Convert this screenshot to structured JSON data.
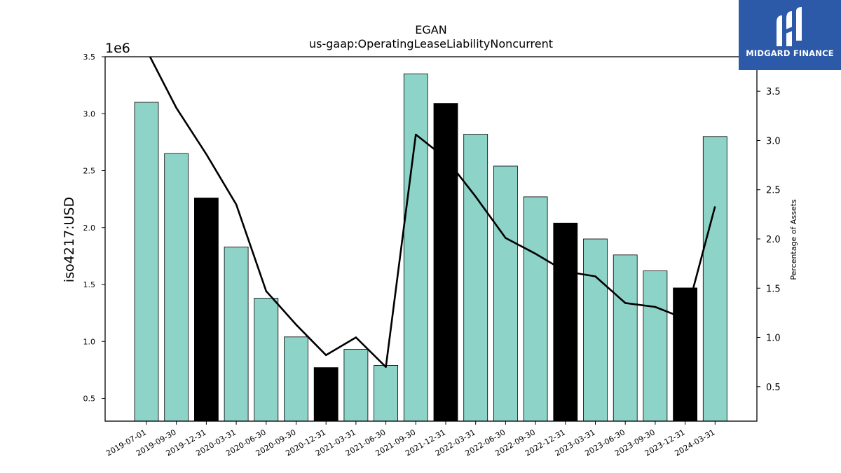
{
  "logo": {
    "text": "MIDGARD FINANCE",
    "bg": "#2c5aa8"
  },
  "chart_data": {
    "type": "bar+line",
    "title": "EGAN",
    "subtitle": "us-gaap:OperatingLeaseLiabilityNoncurrent",
    "ylabel": "iso4217:USD",
    "y_multiplier_label": "1e6",
    "y2label": "Percentage of Assets",
    "ylim": [
      300000,
      3500000
    ],
    "y2lim": [
      0.15,
      3.85
    ],
    "yticks": [
      500000,
      1000000,
      1500000,
      2000000,
      2500000,
      3000000,
      3500000
    ],
    "yticklabels": [
      "0.5",
      "1.0",
      "1.5",
      "2.0",
      "2.5",
      "3.0",
      "3.5"
    ],
    "y2ticks": [
      0.5,
      1.0,
      1.5,
      2.0,
      2.5,
      3.0,
      3.5
    ],
    "y2ticklabels": [
      "0.5",
      "1.0",
      "1.5",
      "2.0",
      "2.5",
      "3.0",
      "3.5"
    ],
    "categories": [
      "2019-07-01",
      "2019-09-30",
      "2019-12-31",
      "2020-03-31",
      "2020-06-30",
      "2020-09-30",
      "2020-12-31",
      "2021-03-31",
      "2021-06-30",
      "2021-09-30",
      "2021-12-31",
      "2022-03-31",
      "2022-06-30",
      "2022-09-30",
      "2022-12-31",
      "2023-03-31",
      "2023-06-30",
      "2023-09-30",
      "2023-12-31",
      "2024-03-31"
    ],
    "series": [
      {
        "kind": "bar",
        "values": [
          3100000,
          2650000,
          2260000,
          1830000,
          1380000,
          1040000,
          770000,
          930000,
          790000,
          3350000,
          3090000,
          2820000,
          2540000,
          2270000,
          2040000,
          1900000,
          1760000,
          1620000,
          1470000,
          2800000
        ],
        "highlight": [
          false,
          false,
          true,
          false,
          false,
          false,
          true,
          false,
          false,
          false,
          true,
          false,
          false,
          false,
          true,
          false,
          false,
          false,
          true,
          false
        ],
        "color": "#8dd3c7",
        "highlight_color": "#000000"
      },
      {
        "kind": "line",
        "axis": "right",
        "values": [
          3.92,
          3.33,
          2.86,
          2.35,
          1.47,
          1.13,
          0.82,
          1.0,
          0.7,
          3.06,
          2.82,
          2.43,
          2.01,
          1.85,
          1.67,
          1.62,
          1.35,
          1.31,
          1.19,
          2.33
        ],
        "color": "#000000"
      }
    ],
    "grid": false,
    "legend": "none"
  }
}
